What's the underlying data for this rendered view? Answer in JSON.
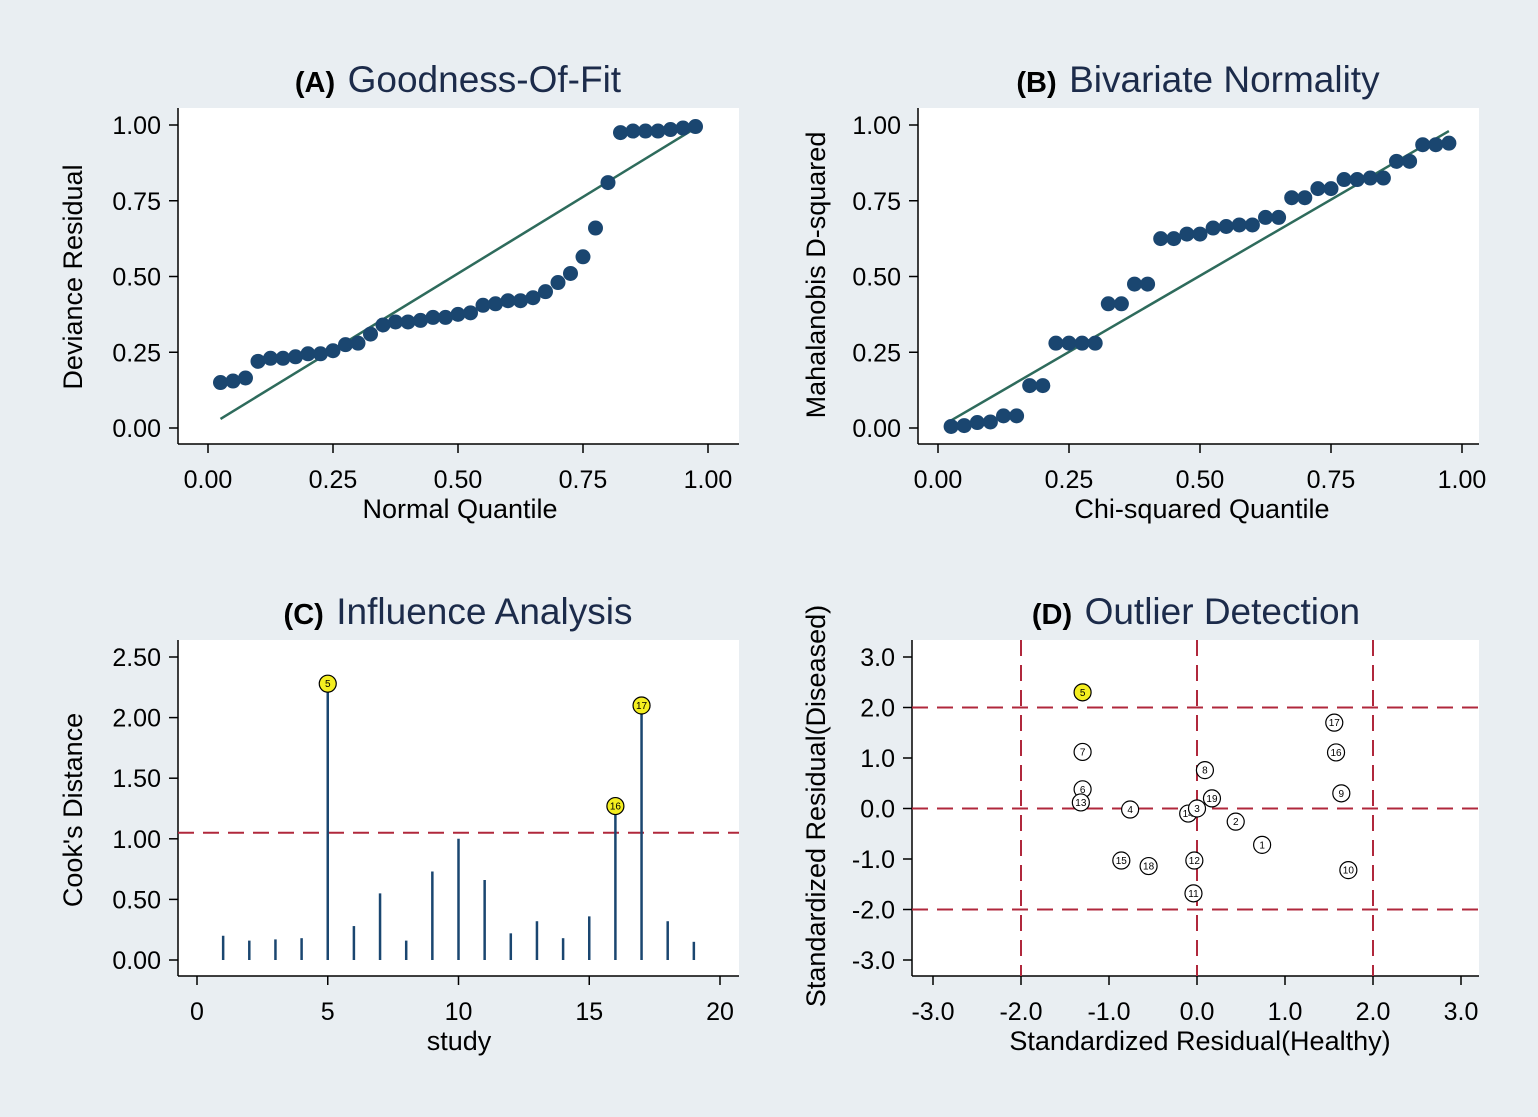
{
  "figure": {
    "background": "#e9eef2",
    "plot_background": "#ffffff",
    "marker_color": "#1a4670",
    "fit_line_color": "#2e6b5c",
    "reference_line_color": "#b0283c",
    "highlight_color": "#f4ee20"
  },
  "chart_data": [
    {
      "panel": "A",
      "type": "scatter",
      "label": "(A)",
      "title": "Goodness-Of-Fit",
      "xlabel": "Normal Quantile",
      "ylabel": "Deviance Residual",
      "xlim": [
        0,
        1
      ],
      "ylim": [
        0,
        1
      ],
      "xticks": [
        "0.00",
        "0.25",
        "0.50",
        "0.75",
        "1.00"
      ],
      "yticks": [
        "0.00",
        "0.25",
        "0.50",
        "0.75",
        "1.00"
      ],
      "grid": false,
      "reference_line": {
        "x": [
          0.025,
          0.975
        ],
        "y": [
          0.03,
          0.99
        ]
      },
      "x": [
        0.025,
        0.05,
        0.075,
        0.1,
        0.125,
        0.15,
        0.175,
        0.2,
        0.225,
        0.25,
        0.275,
        0.3,
        0.325,
        0.35,
        0.375,
        0.4,
        0.425,
        0.45,
        0.475,
        0.5,
        0.525,
        0.55,
        0.575,
        0.6,
        0.625,
        0.65,
        0.675,
        0.7,
        0.725,
        0.75,
        0.775,
        0.8,
        0.825,
        0.85,
        0.875,
        0.9,
        0.925,
        0.95,
        0.975
      ],
      "y": [
        0.15,
        0.155,
        0.165,
        0.22,
        0.23,
        0.23,
        0.235,
        0.245,
        0.245,
        0.255,
        0.275,
        0.28,
        0.31,
        0.34,
        0.35,
        0.35,
        0.355,
        0.365,
        0.365,
        0.375,
        0.38,
        0.405,
        0.41,
        0.42,
        0.42,
        0.43,
        0.45,
        0.48,
        0.51,
        0.565,
        0.66,
        0.81,
        0.975,
        0.98,
        0.98,
        0.98,
        0.985,
        0.99,
        0.995
      ]
    },
    {
      "panel": "B",
      "type": "scatter",
      "label": "(B)",
      "title": "Bivariate Normality",
      "xlabel": "Chi-squared Quantile",
      "ylabel": "Mahalanobis D-squared",
      "xlim": [
        0,
        1
      ],
      "ylim": [
        0,
        1
      ],
      "xticks": [
        "0.00",
        "0.25",
        "0.50",
        "0.75",
        "1.00"
      ],
      "yticks": [
        "0.00",
        "0.25",
        "0.50",
        "0.75",
        "1.00"
      ],
      "grid": false,
      "reference_line": {
        "x": [
          0.025,
          0.975
        ],
        "y": [
          0.025,
          0.98
        ]
      },
      "x": [
        0.025,
        0.05,
        0.075,
        0.1,
        0.125,
        0.15,
        0.175,
        0.2,
        0.225,
        0.25,
        0.275,
        0.3,
        0.325,
        0.35,
        0.375,
        0.4,
        0.425,
        0.45,
        0.475,
        0.5,
        0.525,
        0.55,
        0.575,
        0.6,
        0.625,
        0.65,
        0.675,
        0.7,
        0.725,
        0.75,
        0.775,
        0.8,
        0.825,
        0.85,
        0.875,
        0.9,
        0.925,
        0.95,
        0.975
      ],
      "y": [
        0.005,
        0.008,
        0.018,
        0.02,
        0.04,
        0.04,
        0.14,
        0.14,
        0.28,
        0.28,
        0.28,
        0.28,
        0.41,
        0.41,
        0.475,
        0.475,
        0.625,
        0.625,
        0.64,
        0.64,
        0.66,
        0.665,
        0.67,
        0.67,
        0.695,
        0.695,
        0.76,
        0.76,
        0.79,
        0.79,
        0.82,
        0.82,
        0.825,
        0.825,
        0.88,
        0.88,
        0.935,
        0.935,
        0.94
      ]
    },
    {
      "panel": "C",
      "type": "bar",
      "label": "(C)",
      "title": "Influence Analysis",
      "xlabel": "study",
      "ylabel": "Cook's Distance",
      "xlim": [
        -0.5,
        20.5
      ],
      "ylim": [
        0,
        2.5
      ],
      "xticks": [
        "0",
        "5",
        "10",
        "15",
        "20"
      ],
      "yticks": [
        "0.00",
        "0.50",
        "1.00",
        "1.50",
        "2.00",
        "2.50"
      ],
      "grid": false,
      "threshold": 1.05,
      "studies": [
        1,
        2,
        3,
        4,
        5,
        6,
        7,
        8,
        9,
        10,
        11,
        12,
        13,
        14,
        15,
        16,
        17,
        18,
        19
      ],
      "values": [
        0.2,
        0.16,
        0.17,
        0.18,
        2.28,
        0.28,
        0.55,
        0.16,
        0.73,
        1.0,
        0.66,
        0.22,
        0.32,
        0.18,
        0.36,
        1.27,
        2.1,
        0.32,
        0.15
      ],
      "highlighted": [
        "5",
        "16",
        "17"
      ]
    },
    {
      "panel": "D",
      "type": "scatter",
      "label": "(D)",
      "title": "Outlier Detection",
      "xlabel": "Standardized Residual(Healthy)",
      "ylabel": "Standardized Residual(Diseased)",
      "xlim": [
        -3.3,
        3.2
      ],
      "ylim": [
        -3.3,
        3.3
      ],
      "xticks": [
        "-3.0",
        "-2.0",
        "-1.0",
        "0.0",
        "1.0",
        "2.0",
        "3.0"
      ],
      "yticks": [
        "3.0",
        "2.0",
        "1.0",
        "0.0",
        "-1.0",
        "-2.0",
        "-3.0"
      ],
      "grid": false,
      "reference_lines_x": [
        -2,
        0,
        2
      ],
      "reference_lines_y": [
        2,
        0,
        -2
      ],
      "points": [
        {
          "id": "5",
          "x": -1.3,
          "y": 2.3,
          "highlight": true
        },
        {
          "id": "7",
          "x": -1.3,
          "y": 1.12
        },
        {
          "id": "6",
          "x": -1.3,
          "y": 0.38
        },
        {
          "id": "13",
          "x": -1.32,
          "y": 0.12
        },
        {
          "id": "4",
          "x": -0.76,
          "y": -0.02
        },
        {
          "id": "15",
          "x": -0.86,
          "y": -1.03
        },
        {
          "id": "18",
          "x": -0.55,
          "y": -1.14
        },
        {
          "id": "8",
          "x": 0.09,
          "y": 0.76
        },
        {
          "id": "19",
          "x": 0.17,
          "y": 0.2
        },
        {
          "id": "12",
          "x": -0.03,
          "y": -1.03
        },
        {
          "id": "11",
          "x": -0.04,
          "y": -1.68
        },
        {
          "id": "14",
          "x": -0.1,
          "y": -0.1
        },
        {
          "id": "3",
          "x": 0.0,
          "y": 0.0
        },
        {
          "id": "2",
          "x": 0.44,
          "y": -0.26
        },
        {
          "id": "1",
          "x": 0.74,
          "y": -0.72
        },
        {
          "id": "17",
          "x": 1.56,
          "y": 1.7
        },
        {
          "id": "16",
          "x": 1.58,
          "y": 1.11
        },
        {
          "id": "9",
          "x": 1.64,
          "y": 0.3
        },
        {
          "id": "10",
          "x": 1.72,
          "y": -1.22
        }
      ]
    }
  ]
}
